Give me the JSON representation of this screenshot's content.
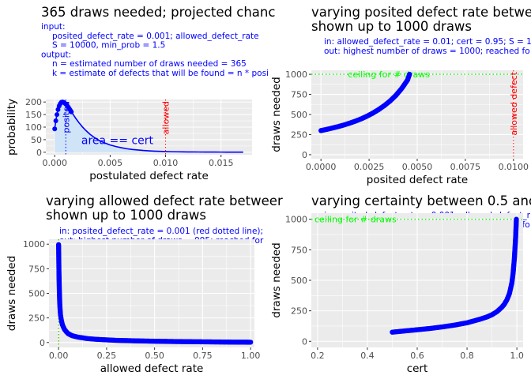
{
  "chart_data": [
    {
      "type": "area",
      "title": "365 draws needed; projected chanc",
      "subtitle_lines": [
        "input:",
        "posited_defect_rate = 0.001; allowed_defect_rate",
        "S = 10000, min_prob = 1.5",
        "output:",
        "n = estimated number of draws needed = 365",
        "k = estimate of defects that will be found = n * posi"
      ],
      "xlabel": "postulated defect rate",
      "ylabel": "probability",
      "xlim": [
        -0.0008,
        0.0178
      ],
      "ylim": [
        -10,
        210
      ],
      "xticks": [
        0.0,
        0.005,
        0.01,
        0.015
      ],
      "xtick_labels": [
        "0.000",
        "0.005",
        "0.010",
        "0.015"
      ],
      "yticks": [
        0,
        50,
        100,
        150,
        200
      ],
      "ytick_labels": [
        "0",
        "50",
        "100",
        "150",
        "200"
      ],
      "curve": {
        "x": [
          0.0,
          0.0001,
          0.0002,
          0.0003,
          0.0004,
          0.0005,
          0.0006,
          0.0007,
          0.0008,
          0.0009,
          0.001,
          0.0011,
          0.0012,
          0.0013,
          0.0014,
          0.0015,
          0.0017,
          0.0019,
          0.0022,
          0.0025,
          0.0028,
          0.0032,
          0.0036,
          0.004,
          0.0045,
          0.005,
          0.0055,
          0.006,
          0.0065,
          0.007,
          0.0075,
          0.008,
          0.0085,
          0.009,
          0.0095,
          0.01,
          0.0105,
          0.011,
          0.0115,
          0.012,
          0.0125,
          0.013,
          0.0135,
          0.014,
          0.0145,
          0.015,
          0.0155,
          0.016,
          0.0165,
          0.017
        ],
        "y": [
          93,
          125,
          150,
          170,
          184,
          193,
          199,
          200,
          199,
          196,
          192,
          187,
          181,
          175,
          168,
          161,
          148,
          135,
          117,
          101,
          87,
          71,
          58,
          47,
          37,
          29,
          23,
          18,
          14,
          11,
          9,
          7,
          5.5,
          4.3,
          3.4,
          2.7,
          2.2,
          1.8,
          1.5,
          1.3,
          1.1,
          1.0,
          0.9,
          0.8,
          0.7,
          0.6,
          0.55,
          0.5,
          0.45,
          0.4
        ],
        "point_color": "#0000ff"
      },
      "shaded_area": {
        "x_from": 0.0,
        "x_to": 0.01,
        "fill": "#cfe4f7"
      },
      "vlines": [
        {
          "x": 0.001,
          "label": "posited",
          "color": "#0000ff"
        },
        {
          "x": 0.01,
          "label": "allowed",
          "color": "#ff0000"
        }
      ],
      "annotations": [
        {
          "text": "area == cert",
          "x": 0.0024,
          "y": 32,
          "color": "#0000ff"
        }
      ]
    },
    {
      "type": "scatter",
      "title_lines": [
        "varying posited defect rate between",
        "shown up to 1000 draws"
      ],
      "subtitle_lines": [
        "in: allowed_defect_rate = 0.01; cert = 0.95; S = 1",
        "out: highest number of draws = 1000; reached fo"
      ],
      "xlabel": "posited defect rate",
      "ylabel": "draws needed",
      "xlim": [
        -0.0005,
        0.0105
      ],
      "ylim": [
        -50,
        1050
      ],
      "xticks": [
        0.0,
        0.0025,
        0.005,
        0.0075,
        0.01
      ],
      "xtick_labels": [
        "0.0000",
        "0.0025",
        "0.0050",
        "0.0075",
        "0.0100"
      ],
      "yticks": [
        0,
        250,
        500,
        750,
        1000
      ],
      "ytick_labels": [
        "0",
        "250",
        "500",
        "750",
        "1000"
      ],
      "points": {
        "x": [
          0.0,
          0.0003,
          0.0006,
          0.0009,
          0.0012,
          0.0015,
          0.0018,
          0.0021,
          0.0024,
          0.0027,
          0.003,
          0.0033,
          0.0036,
          0.0039,
          0.0042,
          0.0045,
          0.0046
        ],
        "y": [
          300,
          315,
          332,
          350,
          370,
          393,
          418,
          447,
          480,
          518,
          562,
          612,
          670,
          740,
          825,
          930,
          1000
        ],
        "color": "#0000ff"
      },
      "hlines": [
        {
          "y": 1000,
          "label": "ceiling for # draws",
          "color": "#00ff00"
        }
      ],
      "vlines": [
        {
          "x": 0.01,
          "label": "allowed defect",
          "color": "#ff0000"
        }
      ]
    },
    {
      "type": "scatter",
      "title_lines": [
        "varying allowed defect rate betweer",
        "shown up to 1000 draws"
      ],
      "subtitle_lines": [
        "in: posited_defect_rate = 0.001 (red dotted line);",
        "out: highest number of draws = 995; reached for"
      ],
      "xlabel": "allowed defect rate",
      "ylabel": "draws needed",
      "xlim": [
        -0.05,
        1.02
      ],
      "ylim": [
        -50,
        1050
      ],
      "xticks": [
        0.0,
        0.25,
        0.5,
        0.75,
        1.0
      ],
      "xtick_labels": [
        "0.00",
        "0.25",
        "0.50",
        "0.75",
        "1.00"
      ],
      "yticks": [
        0,
        250,
        500,
        750,
        1000
      ],
      "ytick_labels": [
        "0",
        "250",
        "500",
        "750",
        "1000"
      ],
      "points": {
        "x": [
          0.0,
          0.002,
          0.004,
          0.006,
          0.008,
          0.01,
          0.015,
          0.02,
          0.03,
          0.04,
          0.05,
          0.07,
          0.1,
          0.15,
          0.2,
          0.3,
          0.4,
          0.5,
          0.6,
          0.7,
          0.8,
          0.9,
          1.0
        ],
        "y": [
          995,
          700,
          520,
          400,
          330,
          280,
          220,
          180,
          135,
          110,
          90,
          70,
          55,
          40,
          32,
          22,
          17,
          13,
          10,
          8,
          6,
          4,
          3
        ],
        "color": "#0000ff"
      },
      "vlines": [
        {
          "x": 0.001,
          "color": "#ff0000"
        },
        {
          "x": 0.0,
          "color": "#00ff00"
        }
      ]
    },
    {
      "type": "scatter",
      "title": "varying certainty between 0.5 and 1",
      "subtitle_lines": [
        "in: posited_defect_rate = 0.001; allowed_defect_r",
        "out: highest number of draws = 1000; reached fo"
      ],
      "xlabel": "cert",
      "ylabel": "draws needed",
      "xlim": [
        0.175,
        1.025
      ],
      "ylim": [
        -50,
        1050
      ],
      "xticks": [
        0.2,
        0.4,
        0.6,
        0.8,
        1.0
      ],
      "xtick_labels": [
        "0.2",
        "0.4",
        "0.6",
        "0.8",
        "1.0"
      ],
      "yticks": [
        0,
        250,
        500,
        750,
        1000
      ],
      "ytick_labels": [
        "0",
        "250",
        "500",
        "750",
        "1000"
      ],
      "points": {
        "x": [
          0.5,
          0.55,
          0.6,
          0.65,
          0.7,
          0.75,
          0.8,
          0.85,
          0.88,
          0.9,
          0.92,
          0.94,
          0.95,
          0.96,
          0.97,
          0.98,
          0.985,
          0.99,
          0.995,
          0.998
        ],
        "y": [
          75,
          85,
          95,
          105,
          118,
          133,
          152,
          180,
          200,
          218,
          243,
          280,
          305,
          340,
          390,
          480,
          560,
          680,
          850,
          1000
        ],
        "color": "#0000ff"
      },
      "hlines": [
        {
          "y": 1000,
          "label": "ceiling for # draws",
          "color": "#00ff00"
        }
      ]
    }
  ]
}
